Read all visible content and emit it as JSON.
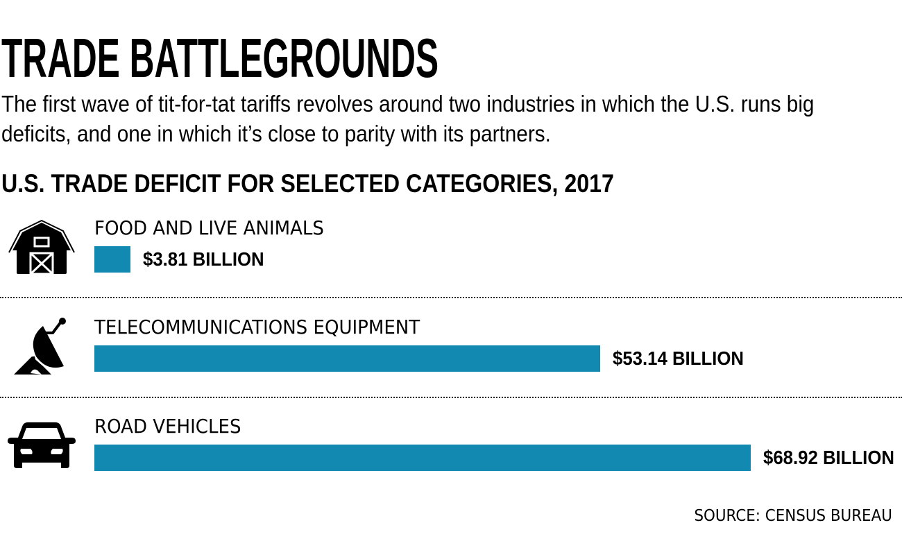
{
  "header": {
    "title": "TRADE BATTLEGROUNDS",
    "subtitle": "The first wave of tit-for-tat tariffs revolves around two industries in which the U.S. runs big deficits, and one in which it’s close to parity with its partners."
  },
  "colors": {
    "bar": "#1189b1",
    "text": "#000000"
  },
  "chart_data": {
    "type": "bar",
    "orientation": "horizontal",
    "title": "U.S. TRADE DEFICIT FOR SELECTED CATEGORIES, 2017",
    "xlabel": "",
    "ylabel": "",
    "unit": "billion USD",
    "categories": [
      "FOOD AND LIVE ANIMALS",
      "TELECOMMUNICATIONS EQUIPMENT",
      "ROAD VEHICLES"
    ],
    "values": [
      3.81,
      53.14,
      68.92
    ],
    "value_labels": [
      "$3.81 BILLION",
      "$53.14 BILLION",
      "$68.92 BILLION"
    ],
    "icons": [
      "barn-icon",
      "satellite-dish-icon",
      "car-icon"
    ],
    "xlim": [
      0,
      68.92
    ],
    "grid": false,
    "legend": "none"
  },
  "footer": {
    "source": "SOURCE: CENSUS BUREAU"
  }
}
